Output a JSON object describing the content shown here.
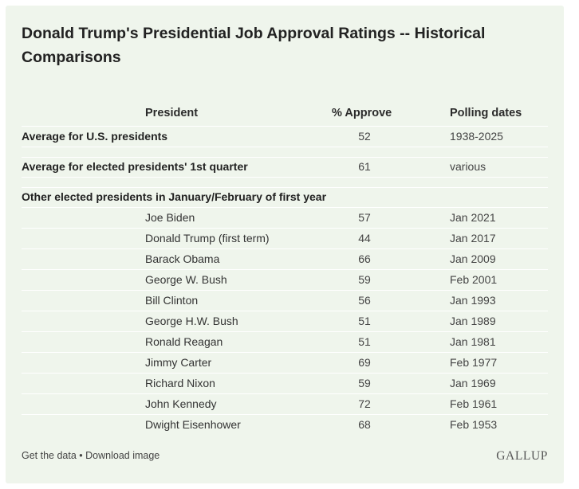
{
  "chart_data": {
    "type": "table",
    "title": "Donald Trump's Presidential Job Approval Ratings -- Historical Comparisons",
    "columns": [
      "President",
      "% Approve",
      "Polling dates"
    ],
    "summary_rows": [
      {
        "label": "Average for U.S. presidents",
        "approve": "52",
        "dates": "1938-2025"
      },
      {
        "label": "Average for elected presidents' 1st quarter",
        "approve": "61",
        "dates": "various"
      }
    ],
    "group_label": "Other elected presidents in January/February of first year",
    "rows": [
      {
        "president": "Joe Biden",
        "approve": "57",
        "dates": "Jan 2021"
      },
      {
        "president": "Donald Trump (first term)",
        "approve": "44",
        "dates": "Jan 2017"
      },
      {
        "president": "Barack Obama",
        "approve": "66",
        "dates": "Jan 2009"
      },
      {
        "president": "George W. Bush",
        "approve": "59",
        "dates": "Feb 2001"
      },
      {
        "president": "Bill Clinton",
        "approve": "56",
        "dates": "Jan 1993"
      },
      {
        "president": "George H.W. Bush",
        "approve": "51",
        "dates": "Jan 1989"
      },
      {
        "president": "Ronald Reagan",
        "approve": "51",
        "dates": "Jan 1981"
      },
      {
        "president": "Jimmy Carter",
        "approve": "69",
        "dates": "Feb 1977"
      },
      {
        "president": "Richard Nixon",
        "approve": "59",
        "dates": "Jan 1969"
      },
      {
        "president": "John Kennedy",
        "approve": "72",
        "dates": "Feb 1961"
      },
      {
        "president": "Dwight Eisenhower",
        "approve": "68",
        "dates": "Feb 1953"
      }
    ]
  },
  "footer": {
    "get_data": "Get the data",
    "separator": " • ",
    "download": "Download image",
    "brand": "GALLUP"
  }
}
